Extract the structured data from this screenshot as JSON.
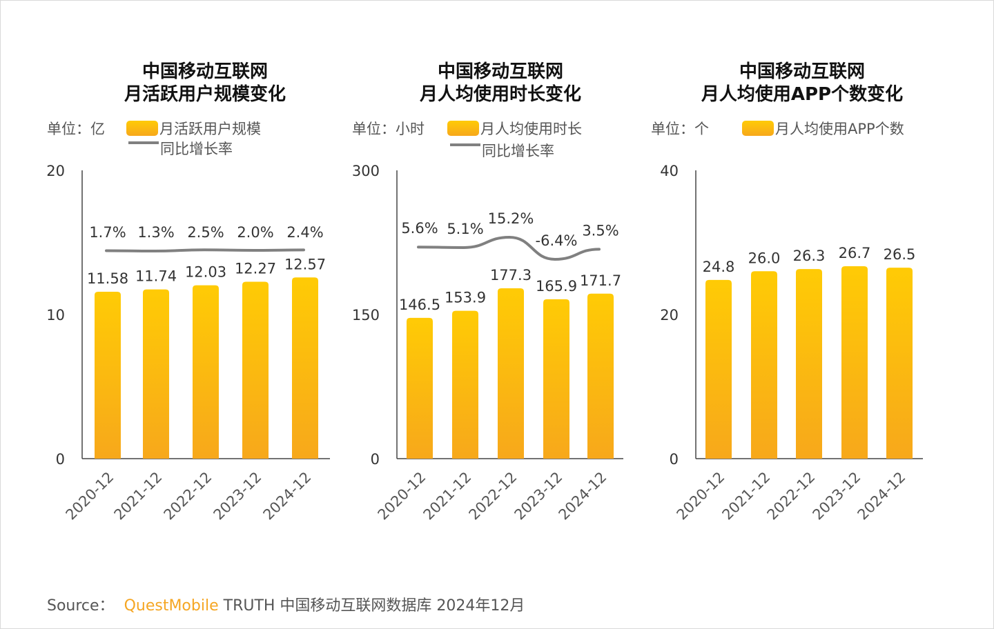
{
  "colors": {
    "bar_top": "#FFCB05",
    "bar_bottom": "#F7A81B",
    "line": "#808080",
    "brand": "#F5A623"
  },
  "chart_data": [
    {
      "type": "bar",
      "title": [
        "中国移动互联网",
        "月活跃用户规模变化"
      ],
      "unit": "单位：亿",
      "categories": [
        "2020-12",
        "2021-12",
        "2022-12",
        "2023-12",
        "2024-12"
      ],
      "ylim": [
        0,
        20
      ],
      "yticks": [
        "0",
        "10",
        "20"
      ],
      "grid": false,
      "series": [
        {
          "name": "月活跃用户规模",
          "type": "bar",
          "values": [
            11.58,
            11.74,
            12.03,
            12.27,
            12.57
          ],
          "labels": [
            "11.58",
            "11.74",
            "12.03",
            "12.27",
            "12.57"
          ]
        },
        {
          "name": "同比增长率",
          "type": "line",
          "values": [
            1.7,
            1.3,
            2.5,
            2.0,
            2.4
          ],
          "labels": [
            "1.7%",
            "1.3%",
            "2.5%",
            "2.0%",
            "2.4%"
          ]
        }
      ]
    },
    {
      "type": "bar",
      "title": [
        "中国移动互联网",
        "月人均使用时长变化"
      ],
      "unit": "单位：小时",
      "categories": [
        "2020-12",
        "2021-12",
        "2022-12",
        "2023-12",
        "2024-12"
      ],
      "ylim": [
        0,
        300
      ],
      "yticks": [
        "0",
        "150",
        "300"
      ],
      "grid": false,
      "series": [
        {
          "name": "月人均使用时长",
          "type": "bar",
          "values": [
            146.5,
            153.9,
            177.3,
            165.9,
            171.7
          ],
          "labels": [
            "146.5",
            "153.9",
            "177.3",
            "165.9",
            "171.7"
          ]
        },
        {
          "name": "同比增长率",
          "type": "line",
          "values": [
            5.6,
            5.1,
            15.2,
            -6.4,
            3.5
          ],
          "labels": [
            "5.6%",
            "5.1%",
            "15.2%",
            "-6.4%",
            "3.5%"
          ]
        }
      ]
    },
    {
      "type": "bar",
      "title": [
        "中国移动互联网",
        "月人均使用APP个数变化"
      ],
      "unit": "单位：个",
      "categories": [
        "2020-12",
        "2021-12",
        "2022-12",
        "2023-12",
        "2024-12"
      ],
      "ylim": [
        0,
        40
      ],
      "yticks": [
        "0",
        "20",
        "40"
      ],
      "grid": false,
      "series": [
        {
          "name": "月人均使用APP个数",
          "type": "bar",
          "values": [
            24.8,
            26.0,
            26.3,
            26.7,
            26.5
          ],
          "labels": [
            "24.8",
            "26.0",
            "26.3",
            "26.7",
            "26.5"
          ]
        }
      ]
    }
  ],
  "source": {
    "label": "Source：",
    "brand": "QuestMobile",
    "text": "TRUTH 中国移动互联网数据库 2024年12月"
  }
}
